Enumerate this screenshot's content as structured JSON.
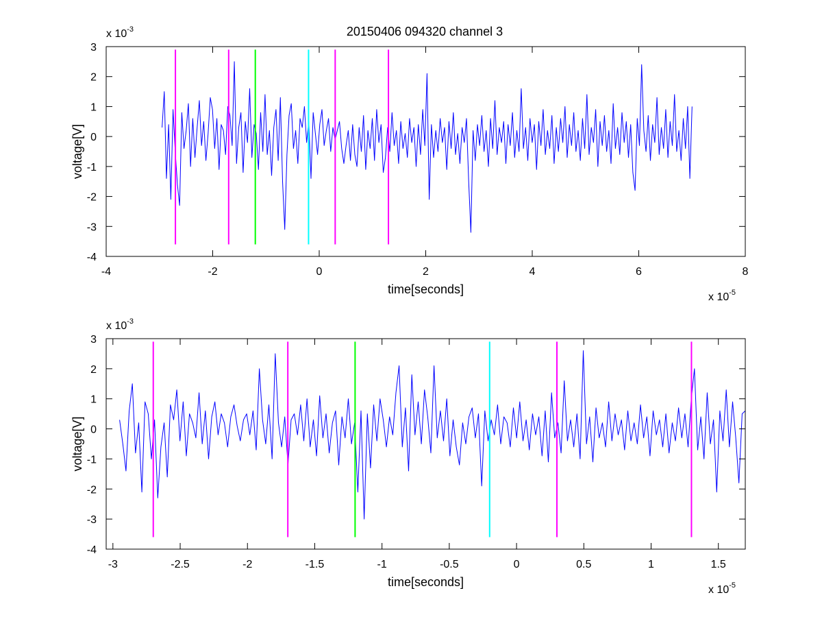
{
  "figure": {
    "title": "20150406 094320 channel 3"
  },
  "colors": {
    "signal": "#0000ff",
    "magenta": "#ff00ff",
    "green": "#00ff00",
    "cyan": "#00ffff",
    "axes": "#000000",
    "background": "#ffffff"
  },
  "chart_data": [
    {
      "type": "line",
      "title": "20150406 094320 channel 3",
      "xlabel": "time[seconds]",
      "ylabel": "voltage[V]",
      "x_multiplier": {
        "base": "x 10",
        "exp": "-5"
      },
      "y_multiplier": {
        "base": "x 10",
        "exp": "-3"
      },
      "xlim": [
        -4,
        8
      ],
      "ylim": [
        -4,
        3
      ],
      "xticks": [
        -4,
        -2,
        0,
        2,
        4,
        6,
        8
      ],
      "xtick_labels": [
        "-4",
        "-2",
        "0",
        "2",
        "4",
        "6",
        "8"
      ],
      "yticks": [
        -4,
        -3,
        -2,
        -1,
        0,
        1,
        2,
        3
      ],
      "ytick_labels": [
        "-4",
        "-3",
        "-2",
        "-1",
        "0",
        "1",
        "2",
        "3"
      ],
      "grid": false,
      "series": [
        {
          "x_range": [
            -2.95,
            7.0
          ],
          "y": [
            0.3,
            1.5,
            -1.4,
            0.4,
            -2.1,
            0.9,
            -0.5,
            -1.6,
            -2.3,
            0.8,
            -0.4,
            0.2,
            1.1,
            -1.0,
            0.6,
            -0.7,
            0.3,
            1.2,
            -0.3,
            0.5,
            -0.8,
            0.1,
            1.3,
            0.9,
            -0.4,
            0.6,
            -1.1,
            0.4,
            0.2,
            -0.6,
            1.0,
            0.7,
            -0.3,
            2.5,
            -0.9,
            0.3,
            0.8,
            -1.2,
            0.5,
            -0.2,
            1.6,
            -0.7,
            0.4,
            0.1,
            -1.1,
            0.8,
            -0.5,
            1.4,
            -0.6,
            0.2,
            -1.3,
            0.3,
            0.9,
            -0.8,
            1.3,
            -1.5,
            -3.1,
            -0.6,
            0.7,
            1.1,
            -0.4,
            0.2,
            -0.9,
            0.6,
            0.3,
            1.0,
            -0.2,
            0.5,
            -1.4,
            0.8,
            0.1,
            -0.6,
            0.4,
            0.9,
            -0.3,
            0.2,
            0.6,
            -0.5,
            0.3,
            -0.1,
            0.2,
            0.5,
            -0.4,
            -0.9,
            -0.3,
            0.2,
            -0.8,
            0.4,
            -0.6,
            -1.0,
            0.3,
            -0.5,
            0.7,
            -1.1,
            0.2,
            -0.4,
            0.6,
            -0.8,
            0.9,
            -0.2,
            0.4,
            -1.2,
            -0.7,
            0.3,
            -0.5,
            0.8,
            -0.3,
            0.2,
            -0.9,
            0.5,
            -0.4,
            0.1,
            -0.7,
            0.6,
            -0.2,
            0.3,
            -1.0,
            0.4,
            -0.6,
            0.9,
            -0.3,
            2.1,
            -2.1,
            0.4,
            -0.7,
            0.2,
            -0.5,
            0.6,
            -0.2,
            0.3,
            -1.1,
            0.5,
            -0.4,
            0.8,
            -0.6,
            0.1,
            -0.9,
            0.3,
            -0.2,
            0.6,
            -1.5,
            -3.2,
            0.2,
            -0.8,
            0.4,
            -0.3,
            0.7,
            -0.5,
            0.2,
            -1.0,
            0.6,
            -0.4,
            1.2,
            -0.6,
            0.3,
            -0.2,
            0.5,
            -0.9,
            0.4,
            -0.3,
            0.8,
            -0.7,
            0.2,
            -0.5,
            1.6,
            -0.4,
            0.3,
            -0.8,
            0.6,
            -0.2,
            0.4,
            -1.1,
            0.5,
            -0.3,
            0.9,
            -0.6,
            0.2,
            -0.4,
            0.7,
            -0.9,
            0.3,
            -0.5,
            0.6,
            -0.2,
            1.0,
            -0.7,
            0.4,
            -0.3,
            0.8,
            -0.5,
            0.2,
            -0.8,
            0.6,
            -0.4,
            1.4,
            -0.6,
            0.3,
            -0.2,
            0.9,
            -1.0,
            0.5,
            -0.3,
            0.7,
            -0.5,
            0.2,
            -0.9,
            1.1,
            -0.4,
            0.3,
            -0.6,
            0.8,
            -0.2,
            0.5,
            -0.7,
            0.4,
            -1.2,
            -1.8,
            0.6,
            -0.3,
            2.4,
            0.2,
            -0.5,
            0.7,
            -0.8,
            0.4,
            -0.2,
            1.3,
            -0.6,
            0.3,
            -0.4,
            0.9,
            -0.7,
            0.5,
            -0.3,
            1.4,
            -0.5,
            0.2,
            -0.8,
            0.6,
            -0.4,
            1.0,
            -1.4,
            1.0
          ]
        }
      ],
      "event_markers": [
        {
          "x": -2.7,
          "color_key": "magenta"
        },
        {
          "x": -1.7,
          "color_key": "magenta"
        },
        {
          "x": -1.2,
          "color_key": "green"
        },
        {
          "x": -0.2,
          "color_key": "cyan"
        },
        {
          "x": 0.3,
          "color_key": "magenta"
        },
        {
          "x": 1.3,
          "color_key": "magenta"
        }
      ],
      "marker_y_range": [
        -3.6,
        2.9
      ]
    },
    {
      "type": "line",
      "title": "",
      "xlabel": "time[seconds]",
      "ylabel": "voltage[V]",
      "x_multiplier": {
        "base": "x 10",
        "exp": "-5"
      },
      "y_multiplier": {
        "base": "x 10",
        "exp": "-3"
      },
      "xlim": [
        -3.05,
        1.7
      ],
      "ylim": [
        -4,
        3
      ],
      "xticks": [
        -3,
        -2.5,
        -2,
        -1.5,
        -1,
        -0.5,
        0,
        0.5,
        1,
        1.5
      ],
      "xtick_labels": [
        "-3",
        "-2.5",
        "-2",
        "-1.5",
        "-1",
        "-0.5",
        "0",
        "0.5",
        "1",
        "1.5"
      ],
      "yticks": [
        -4,
        -3,
        -2,
        -1,
        0,
        1,
        2,
        3
      ],
      "ytick_labels": [
        "-4",
        "-3",
        "-2",
        "-1",
        "0",
        "1",
        "2",
        "3"
      ],
      "grid": false,
      "series": [
        {
          "x_range": [
            -2.95,
            1.7
          ],
          "y": [
            0.3,
            -0.5,
            -1.4,
            0.6,
            1.5,
            -0.8,
            0.2,
            -2.1,
            0.9,
            0.5,
            -1.0,
            0.3,
            -2.3,
            -0.6,
            0.2,
            -1.6,
            0.8,
            0.3,
            1.3,
            -0.4,
            0.9,
            -0.9,
            0.5,
            0.2,
            -0.3,
            1.2,
            -0.5,
            0.6,
            -1.0,
            0.4,
            0.9,
            -0.2,
            0.5,
            0.2,
            -0.6,
            0.4,
            0.8,
            0.1,
            -0.4,
            0.3,
            0.5,
            -0.2,
            0.6,
            -0.7,
            2.0,
            0.3,
            -0.5,
            0.8,
            -1.0,
            2.5,
            0.2,
            -0.6,
            0.4,
            -1.2,
            0.3,
            0.5,
            -0.2,
            0.8,
            -0.4,
            1.0,
            -0.6,
            0.3,
            -0.9,
            1.1,
            -0.3,
            0.5,
            -0.8,
            0.2,
            0.6,
            -1.2,
            0.4,
            -0.3,
            1.0,
            -0.5,
            0.2,
            -2.1,
            0.6,
            -3.0,
            0.5,
            -1.3,
            0.8,
            -0.4,
            1.0,
            0.3,
            -0.6,
            0.4,
            -0.2,
            1.2,
            2.1,
            -0.6,
            0.7,
            -1.4,
            1.8,
            -0.2,
            0.9,
            -0.5,
            1.3,
            0.4,
            -0.8,
            2.1,
            -0.3,
            0.6,
            -0.4,
            1.0,
            -0.9,
            0.3,
            -0.6,
            -1.2,
            0.2,
            -0.5,
            0.4,
            0.7,
            -0.3,
            0.5,
            -1.9,
            0.6,
            -0.4,
            0.3,
            -0.2,
            0.8,
            -0.5,
            0.4,
            0.2,
            -0.6,
            0.7,
            -0.3,
            0.9,
            -0.4,
            0.3,
            -0.7,
            0.5,
            -0.2,
            0.4,
            -0.9,
            0.6,
            -1.1,
            1.2,
            -0.3,
            0.2,
            -0.8,
            1.6,
            -0.4,
            0.3,
            -0.6,
            0.5,
            -1.0,
            2.6,
            -0.5,
            0.4,
            -1.1,
            0.7,
            -0.3,
            0.2,
            -0.6,
            0.9,
            -0.4,
            0.5,
            -0.2,
            0.3,
            -0.7,
            0.6,
            -0.4,
            0.2,
            -0.5,
            0.8,
            -0.3,
            0.4,
            -0.9,
            0.6,
            -0.2,
            0.3,
            -0.6,
            0.5,
            -0.8,
            0.2,
            -0.4,
            0.7,
            -0.3,
            0.5,
            -0.6,
            1.0,
            2.0,
            -0.7,
            0.4,
            -1.0,
            1.2,
            -0.5,
            0.3,
            -2.1,
            0.6,
            -0.4,
            1.3,
            -0.6,
            0.9,
            -0.3,
            -1.8,
            0.5,
            0.6
          ]
        }
      ],
      "event_markers": [
        {
          "x": -2.7,
          "color_key": "magenta"
        },
        {
          "x": -1.7,
          "color_key": "magenta"
        },
        {
          "x": -1.2,
          "color_key": "green"
        },
        {
          "x": -0.2,
          "color_key": "cyan"
        },
        {
          "x": 0.3,
          "color_key": "magenta"
        },
        {
          "x": 1.3,
          "color_key": "magenta"
        }
      ],
      "marker_y_range": [
        -3.6,
        2.9
      ]
    }
  ]
}
